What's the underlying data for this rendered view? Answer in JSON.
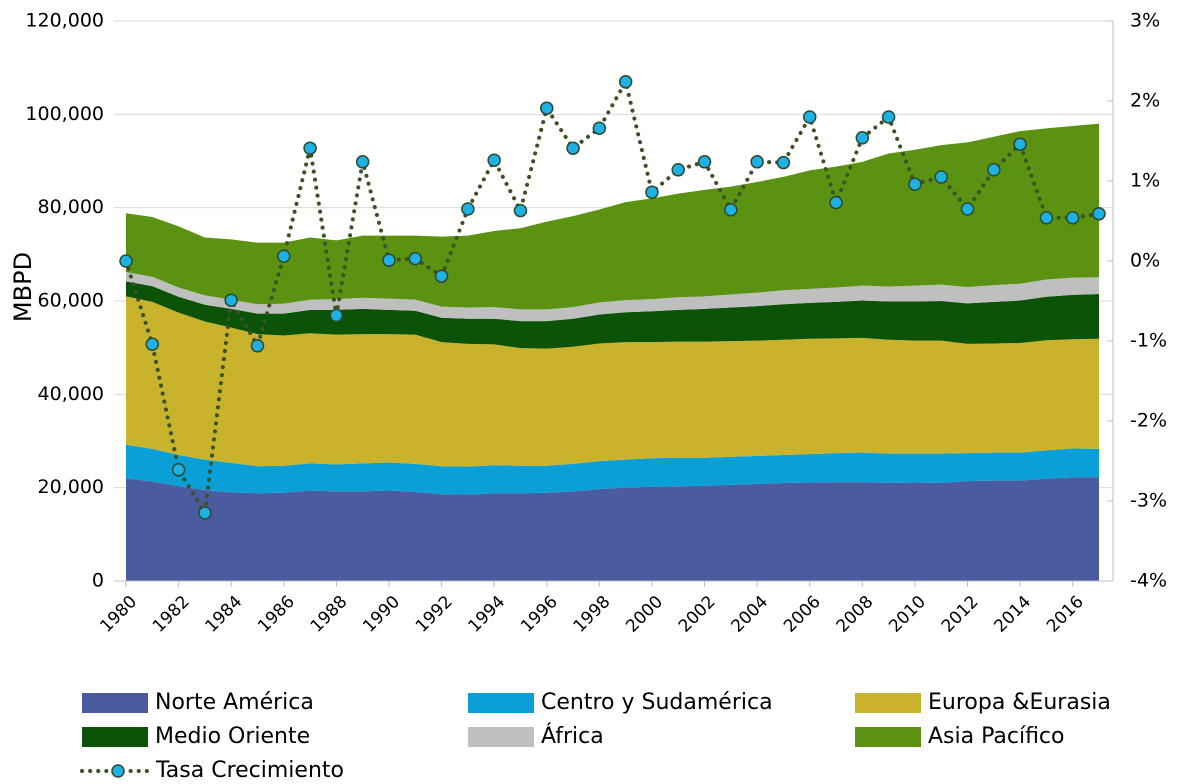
{
  "chart_data": {
    "type": "area",
    "y_label": "MBPD",
    "x": [
      1980,
      1981,
      1982,
      1983,
      1984,
      1985,
      1986,
      1987,
      1988,
      1989,
      1990,
      1991,
      1992,
      1993,
      1994,
      1995,
      1996,
      1997,
      1998,
      1999,
      2000,
      2001,
      2002,
      2003,
      2004,
      2005,
      2006,
      2007,
      2008,
      2009,
      2010,
      2011,
      2012,
      2013,
      2014,
      2015,
      2016,
      2017
    ],
    "xlim": [
      1980,
      2017
    ],
    "xticks": [
      1980,
      1982,
      1984,
      1986,
      1988,
      1990,
      1992,
      1994,
      1996,
      1998,
      2000,
      2002,
      2004,
      2006,
      2008,
      2010,
      2012,
      2014,
      2016
    ],
    "ylim": [
      0,
      120000
    ],
    "yticks": [
      0,
      {
        "value": 20000,
        "label": "20,000"
      },
      {
        "value": 40000,
        "label": "40,000"
      },
      {
        "value": 60000,
        "label": "60,000"
      },
      {
        "value": 80000,
        "label": "80,000"
      },
      {
        "value": 100000,
        "label": "100,000"
      },
      {
        "value": 120000,
        "label": "120,000"
      }
    ],
    "y2lim": [
      -4,
      3
    ],
    "y2ticks": [
      {
        "value": -4,
        "label": "-4%"
      },
      {
        "value": -3,
        "label": "-3%"
      },
      {
        "value": -2,
        "label": "-2%"
      },
      {
        "value": -1,
        "label": "-1%"
      },
      {
        "value": 0,
        "label": "0%"
      },
      {
        "value": 1,
        "label": "1%"
      },
      {
        "value": 2,
        "label": "2%"
      },
      {
        "value": 3,
        "label": "3%"
      }
    ],
    "grid": true,
    "stacked": true,
    "legend": "bottom",
    "series": [
      {
        "name": "Norte América",
        "color": "#4a5b9f",
        "values": [
          22000,
          21300,
          20300,
          19500,
          19000,
          18800,
          18900,
          19400,
          19200,
          19200,
          19400,
          19100,
          18600,
          18500,
          18800,
          18800,
          18900,
          19200,
          19700,
          20000,
          20200,
          20300,
          20400,
          20600,
          20800,
          21000,
          21100,
          21200,
          21200,
          21000,
          21100,
          21000,
          21400,
          21500,
          21500,
          21900,
          22200,
          22200
        ]
      },
      {
        "name": "Centro y Sudamérica",
        "color": "#0a9fd6",
        "values": [
          7200,
          7000,
          6700,
          6500,
          6300,
          5800,
          5800,
          5800,
          5800,
          6000,
          6000,
          6000,
          6000,
          6000,
          6000,
          5900,
          5800,
          5900,
          6000,
          6000,
          6100,
          6100,
          6000,
          6000,
          6000,
          6000,
          6100,
          6200,
          6300,
          6300,
          6200,
          6300,
          6000,
          6000,
          6000,
          6100,
          6200,
          6100
        ]
      },
      {
        "name": "Europa &Eurasia",
        "color": "#c9b32d",
        "values": [
          31800,
          31500,
          30500,
          29600,
          29000,
          28300,
          27900,
          27900,
          27800,
          27700,
          27500,
          27700,
          26600,
          26300,
          25900,
          25200,
          25100,
          25100,
          25200,
          25200,
          24900,
          24900,
          24900,
          24800,
          24700,
          24700,
          24700,
          24600,
          24600,
          24400,
          24200,
          24200,
          23400,
          23400,
          23500,
          23600,
          23400,
          23600
        ]
      },
      {
        "name": "Medio Oriente",
        "color": "#0b5306",
        "values": [
          3200,
          3400,
          3400,
          3600,
          4000,
          4400,
          4700,
          5000,
          5300,
          5400,
          5200,
          5100,
          5200,
          5400,
          5500,
          5800,
          5900,
          6000,
          6200,
          6400,
          6600,
          6800,
          7000,
          7200,
          7400,
          7600,
          7700,
          7800,
          8000,
          8200,
          8400,
          8500,
          8700,
          8900,
          9100,
          9300,
          9500,
          9600
        ]
      },
      {
        "name": "África",
        "color": "#bfbfbf",
        "values": [
          2000,
          2000,
          2000,
          2000,
          2000,
          2000,
          2100,
          2200,
          2300,
          2400,
          2400,
          2400,
          2400,
          2400,
          2500,
          2500,
          2500,
          2500,
          2600,
          2600,
          2600,
          2700,
          2700,
          2800,
          2900,
          3000,
          3000,
          3100,
          3200,
          3200,
          3400,
          3500,
          3500,
          3600,
          3600,
          3700,
          3700,
          3600
        ]
      },
      {
        "name": "Asia Pacífico",
        "color": "#5b9211",
        "values": [
          12600,
          12800,
          13100,
          12400,
          12900,
          13200,
          13100,
          13300,
          12600,
          13300,
          13500,
          13700,
          15000,
          15400,
          16300,
          17400,
          18800,
          19500,
          19900,
          21000,
          21600,
          22200,
          22800,
          23100,
          23700,
          24300,
          25400,
          25900,
          26500,
          28500,
          29100,
          29900,
          31000,
          31800,
          32700,
          32400,
          32500,
          32900
        ]
      },
      {
        "name": "Tasa Crecimiento",
        "type": "line",
        "axis": "y2",
        "color": "#3b5126",
        "marker_color": "#1eb1e3",
        "values": [
          0.0,
          -1.04,
          -2.61,
          -3.15,
          -0.49,
          -1.06,
          0.06,
          1.41,
          -0.68,
          1.24,
          0.01,
          0.03,
          -0.19,
          0.65,
          1.26,
          0.63,
          1.91,
          1.41,
          1.66,
          2.24,
          0.86,
          1.14,
          1.24,
          0.64,
          1.24,
          1.23,
          1.8,
          0.73,
          1.54,
          1.8,
          0.96,
          1.05,
          0.65,
          1.14,
          1.46,
          0.54,
          0.54,
          0.59
        ]
      }
    ]
  }
}
